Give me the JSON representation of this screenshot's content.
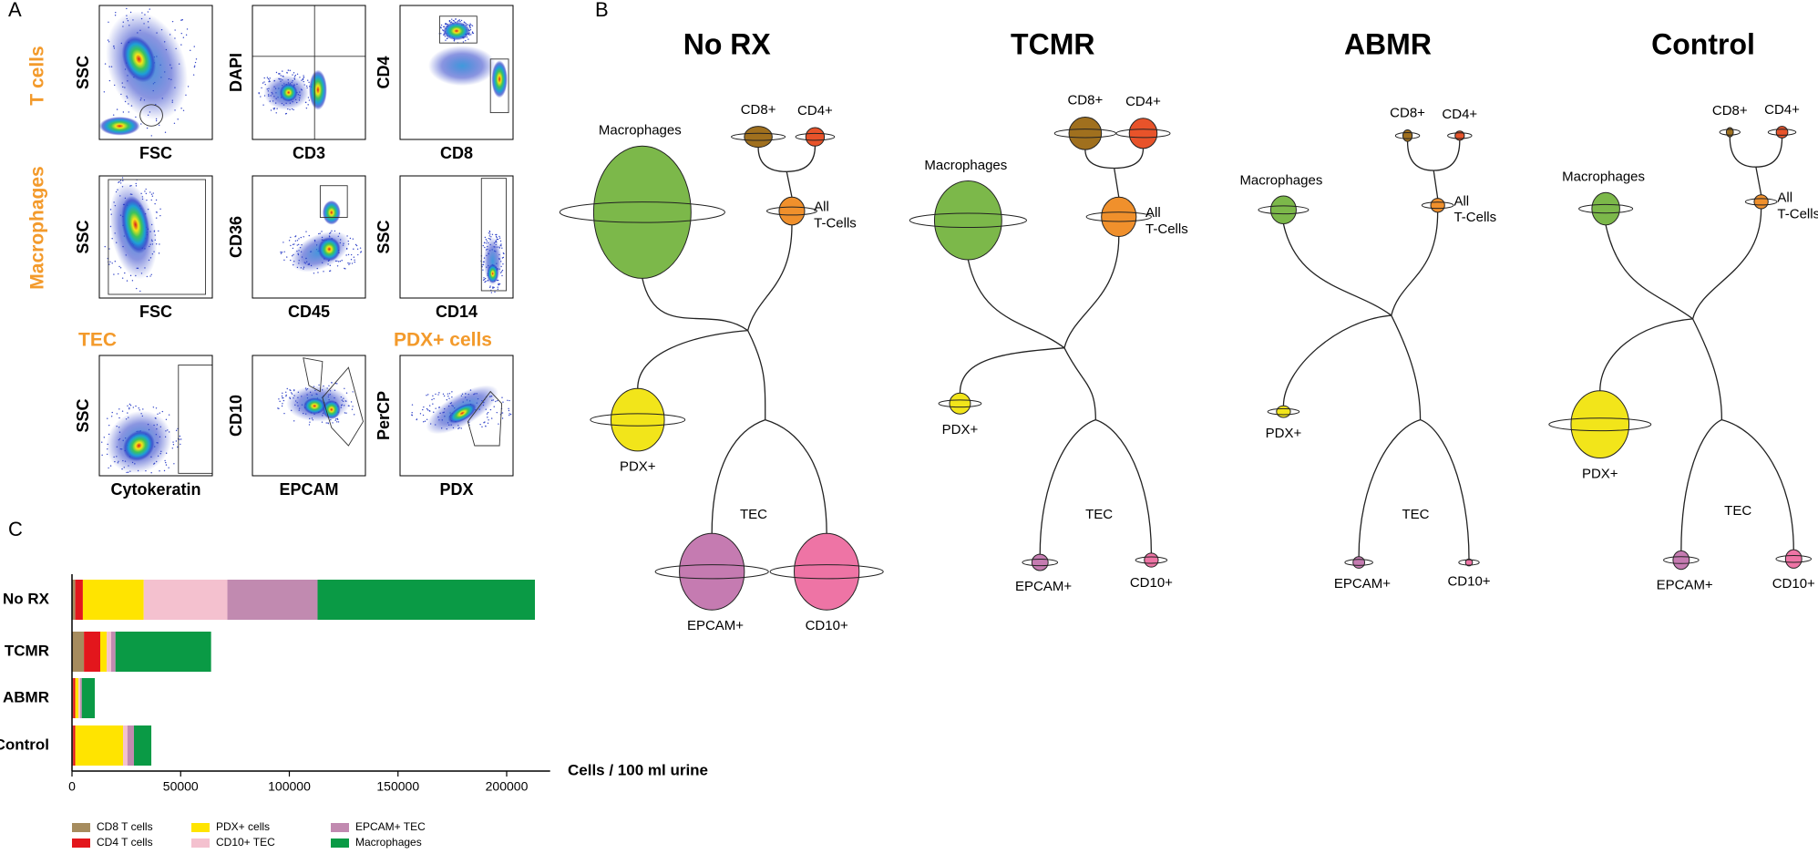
{
  "panel_labels": [
    "A",
    "B",
    "C"
  ],
  "panel_a": {
    "row_labels": [
      "T cells",
      "Macrophages"
    ],
    "gate_labels": [
      "TEC",
      "PDX+ cells"
    ],
    "plots": [
      {
        "x": "FSC",
        "y": "SSC"
      },
      {
        "x": "CD3",
        "y": "DAPI"
      },
      {
        "x": "CD8",
        "y": "CD4"
      },
      {
        "x": "FSC",
        "y": "SSC"
      },
      {
        "x": "CD45",
        "y": "CD36"
      },
      {
        "x": "CD14",
        "y": "SSC"
      },
      {
        "x": "Cytokeratin",
        "y": "SSC"
      },
      {
        "x": "EPCAM",
        "y": "CD10"
      },
      {
        "x": "PDX",
        "y": "PerCP"
      }
    ]
  },
  "panel_b": {
    "trees": [
      {
        "title": "No RX",
        "cd8": "CD8+",
        "cd4": "CD4+",
        "all_t": [
          "All",
          "T-Cells"
        ],
        "macrophages": "Macrophages",
        "pdx": "PDX+",
        "tec": "TEC",
        "epcam": "EPCAM+",
        "cd10": "CD10+"
      },
      {
        "title": "TCMR",
        "cd8": "CD8+",
        "cd4": "CD4+",
        "all_t": [
          "All",
          "T-Cells"
        ],
        "macrophages": "Macrophages",
        "pdx": "PDX+",
        "tec": "TEC",
        "epcam": "EPCAM+",
        "cd10": "CD10+"
      },
      {
        "title": "ABMR",
        "cd8": "CD8+",
        "cd4": "CD4+",
        "all_t": [
          "All",
          "T-Cells"
        ],
        "macrophages": "Macrophages",
        "pdx": "PDX+",
        "tec": "TEC",
        "epcam": "EPCAM+",
        "cd10": "CD10+"
      },
      {
        "title": "Control",
        "cd8": "CD8+",
        "cd4": "CD4+",
        "all_t": [
          "All",
          "T-Cells"
        ],
        "macrophages": "Macrophages",
        "pdx": "PDX+",
        "tec": "TEC",
        "epcam": "EPCAM+",
        "cd10": "CD10+"
      }
    ]
  },
  "chart_data": {
    "type": "bar",
    "orientation": "horizontal",
    "stacked": true,
    "categories": [
      "No RX",
      "TCMR",
      "ABMR",
      "Control"
    ],
    "series": [
      {
        "name": "CD8 T cells",
        "color": "#a68c5e",
        "values": [
          1500,
          5500,
          500,
          500
        ]
      },
      {
        "name": "CD4 T cells",
        "color": "#e3161c",
        "values": [
          3500,
          7500,
          1000,
          1000
        ]
      },
      {
        "name": "PDX+ cells",
        "color": "#ffe400",
        "values": [
          28000,
          3000,
          1500,
          22000
        ]
      },
      {
        "name": "CD10+ TEC",
        "color": "#f4c1cf",
        "values": [
          38500,
          2000,
          800,
          2000
        ]
      },
      {
        "name": "EPCAM+ TEC",
        "color": "#c18ab0",
        "values": [
          41500,
          2000,
          700,
          3000
        ]
      },
      {
        "name": "Macrophages",
        "color": "#0a9a45",
        "values": [
          100000,
          44000,
          6000,
          8000
        ]
      }
    ],
    "xlim": [
      0,
      220000
    ],
    "xticks": [
      0,
      50000,
      100000,
      150000,
      200000
    ],
    "xlabel": "Cells / 100 ml urine",
    "legend": "bottom"
  }
}
